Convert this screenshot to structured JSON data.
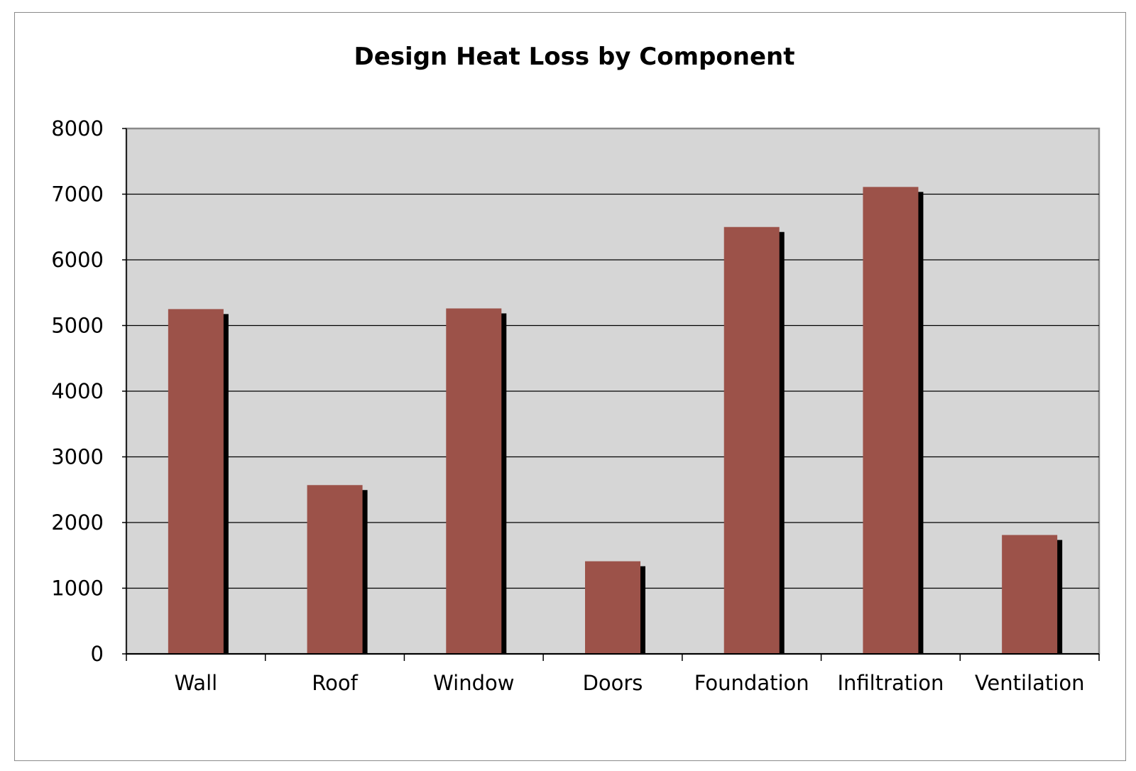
{
  "chart_data": {
    "type": "bar",
    "title": "Design Heat Loss by Component",
    "xlabel": "",
    "ylabel": "",
    "categories": [
      "Wall",
      "Roof",
      "Window",
      "Doors",
      "Foundation",
      "Infiltration",
      "Ventilation"
    ],
    "values": [
      5250,
      2570,
      5260,
      1410,
      6500,
      7110,
      1810
    ],
    "ylim": [
      0,
      8000
    ],
    "yticks": [
      "0",
      "1000",
      "2000",
      "3000",
      "4000",
      "5000",
      "6000",
      "7000",
      "8000"
    ],
    "grid": true,
    "legend": "none",
    "colors": {
      "bar": "#9c5249",
      "shadow": "#000000",
      "plot_background": "#d6d6d6",
      "gridline": "#000000"
    }
  }
}
